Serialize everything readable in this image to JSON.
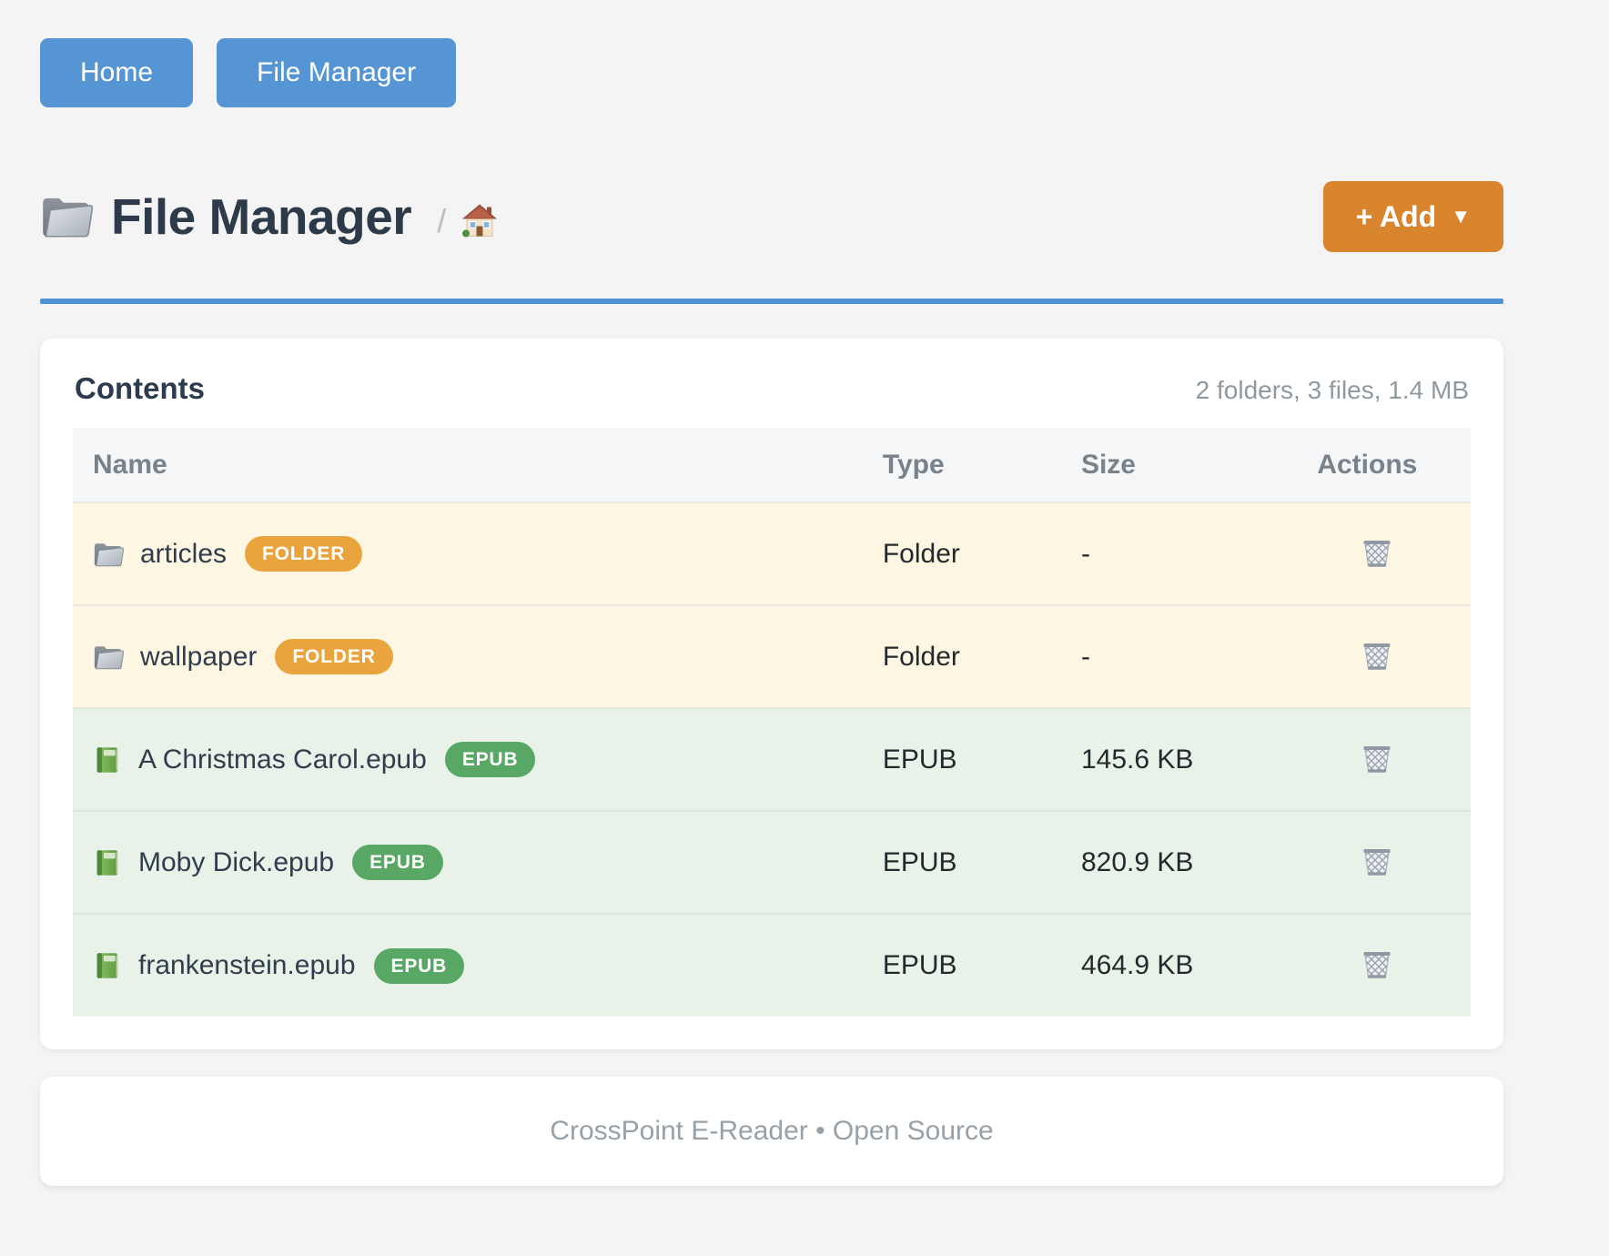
{
  "nav": {
    "buttons": [
      {
        "label": "Home"
      },
      {
        "label": "File Manager"
      }
    ]
  },
  "header": {
    "title": "File Manager",
    "title_icon": "open-folder-icon",
    "breadcrumb_separator": "/",
    "breadcrumb_icon": "home-icon",
    "add_button_label": "+ Add",
    "add_button_caret": "▼"
  },
  "panel": {
    "title": "Contents",
    "summary": "2 folders, 3 files, 1.4 MB",
    "table": {
      "columns": [
        "Name",
        "Type",
        "Size",
        "Actions"
      ],
      "rows": [
        {
          "name": "articles",
          "badge": "FOLDER",
          "kind": "folder",
          "icon": "folder-icon",
          "type": "Folder",
          "size": "-",
          "action_icon": "trash-icon"
        },
        {
          "name": "wallpaper",
          "badge": "FOLDER",
          "kind": "folder",
          "icon": "folder-icon",
          "type": "Folder",
          "size": "-",
          "action_icon": "trash-icon"
        },
        {
          "name": "A Christmas Carol.epub",
          "badge": "EPUB",
          "kind": "epub",
          "icon": "book-icon",
          "type": "EPUB",
          "size": "145.6 KB",
          "action_icon": "trash-icon"
        },
        {
          "name": "Moby Dick.epub",
          "badge": "EPUB",
          "kind": "epub",
          "icon": "book-icon",
          "type": "EPUB",
          "size": "820.9 KB",
          "action_icon": "trash-icon"
        },
        {
          "name": "frankenstein.epub",
          "badge": "EPUB",
          "kind": "epub",
          "icon": "book-icon",
          "type": "EPUB",
          "size": "464.9 KB",
          "action_icon": "trash-icon"
        }
      ]
    }
  },
  "footer": {
    "text": "CrossPoint E-Reader • Open Source"
  },
  "colors": {
    "nav_button_blue": "#5695d3",
    "title_rule_blue": "#4e93d4",
    "add_button_orange": "#d9852e",
    "badge_folder_orange": "#e9a43e",
    "badge_epub_green": "#58a765",
    "row_folder_bg": "#fdf6e2",
    "row_epub_bg": "#e8f2e8",
    "table_header_bg": "#f5f6f8"
  }
}
